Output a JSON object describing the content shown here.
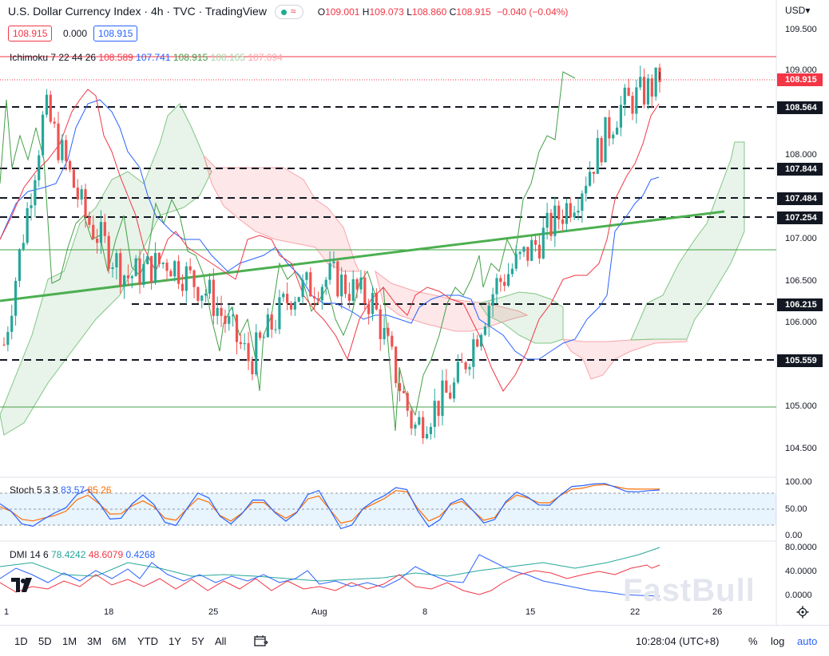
{
  "header": {
    "title": "U.S. Dollar Currency Index · 4h · TVC · TradingView",
    "ohlc": {
      "o": "109.001",
      "h": "109.073",
      "l": "108.860",
      "c": "108.915",
      "chg": "−0.040 (−0.04%)"
    },
    "labels": {
      "o": "O",
      "h": "H",
      "l": "L",
      "c": "C"
    },
    "badge_symbol": "≈",
    "bid": "108.915",
    "spread": "0.000",
    "ask": "108.915",
    "currency": "USD▾"
  },
  "ichimoku": {
    "label": "Ichimoku 7 22 44 26",
    "v1": "108.589",
    "v2": "107.741",
    "v3": "108.915",
    "v4": "108.165",
    "v5": "107.094"
  },
  "stoch": {
    "label": "Stoch 5 3 3",
    "k": "83.57",
    "d": "85.26"
  },
  "dmi": {
    "label": "DMI 14 6",
    "plus": "78.4242",
    "minus": "48.6079",
    "adx": "0.4268"
  },
  "colors": {
    "up": "#26a69a",
    "down": "#ef5350",
    "tenkan": "#f23645",
    "kijun": "#2962ff",
    "chikou": "#43a047",
    "cloud_up": "#43a047",
    "cloud_down": "#f23645",
    "trendline": "#4caf50",
    "stoch_k": "#2962ff",
    "stoch_d": "#ff6d00",
    "accent": "#2962ff"
  },
  "price_axis": {
    "ticks": [
      "109.500",
      "109.000",
      "108.000",
      "107.000",
      "106.500",
      "106.000",
      "105.000",
      "104.500"
    ]
  },
  "stoch_axis": {
    "ticks": [
      "100.00",
      "50.00",
      "0.00"
    ]
  },
  "dmi_axis": {
    "ticks": [
      "80.0000",
      "40.0000",
      "0.0000"
    ]
  },
  "time_axis": {
    "ticks": [
      "1",
      "18",
      "25",
      "Aug",
      "8",
      "15",
      "22",
      "26"
    ]
  },
  "levels": [
    "108.564",
    "107.844",
    "107.484",
    "107.254",
    "106.215",
    "105.559"
  ],
  "current_price": "108.915",
  "bottom_bar": {
    "timeframes": [
      "1D",
      "5D",
      "1M",
      "3M",
      "6M",
      "YTD",
      "1Y",
      "5Y",
      "All"
    ],
    "clock": "10:28:04 (UTC+8)",
    "percent": "%",
    "log": "log",
    "auto": "auto"
  },
  "watermark": "FastBull",
  "chart_data": [
    {
      "type": "line",
      "title": "U.S. Dollar Currency Index · 4h · TVC",
      "x_range": [
        "Jul 11",
        "Aug 26"
      ],
      "ylim": [
        104.3,
        109.7
      ],
      "description_series": [
        {
          "name": "Close (approx.)",
          "x": [
            "Jul 11",
            "Jul 14",
            "Jul 18",
            "Jul 21",
            "Jul 25",
            "Jul 28",
            "Aug 1",
            "Aug 3",
            "Aug 5",
            "Aug 8",
            "Aug 10",
            "Aug 12",
            "Aug 15",
            "Aug 17",
            "Aug 19",
            "Aug 22",
            "Aug 23"
          ],
          "values": [
            105.8,
            108.6,
            107.3,
            106.6,
            106.8,
            106.4,
            105.6,
            106.4,
            106.6,
            106.3,
            104.8,
            105.3,
            106.5,
            107.0,
            107.6,
            108.6,
            108.915
          ]
        },
        {
          "name": "Tenkan",
          "x": [
            "Jul 11",
            "Jul 14",
            "Jul 18",
            "Jul 21",
            "Jul 25",
            "Jul 28",
            "Aug 1",
            "Aug 3",
            "Aug 5",
            "Aug 8",
            "Aug 10",
            "Aug 12",
            "Aug 15",
            "Aug 17",
            "Aug 19",
            "Aug 22",
            "Aug 23"
          ],
          "values": [
            106.0,
            108.7,
            107.4,
            106.5,
            106.6,
            106.5,
            105.8,
            106.0,
            106.4,
            106.3,
            105.2,
            105.3,
            106.4,
            106.7,
            107.4,
            108.4,
            108.589
          ]
        },
        {
          "name": "Kijun",
          "x": [
            "Jul 11",
            "Jul 14",
            "Jul 18",
            "Jul 21",
            "Jul 25",
            "Jul 28",
            "Aug 1",
            "Aug 3",
            "Aug 5",
            "Aug 8",
            "Aug 10",
            "Aug 12",
            "Aug 15",
            "Aug 17",
            "Aug 19",
            "Aug 22",
            "Aug 23"
          ],
          "values": [
            106.3,
            108.3,
            107.9,
            106.8,
            106.7,
            106.9,
            106.3,
            106.1,
            106.0,
            106.2,
            106.1,
            105.8,
            105.7,
            106.0,
            106.8,
            107.3,
            107.741
          ]
        }
      ],
      "horizontal_levels": [
        108.564,
        107.844,
        107.484,
        107.254,
        106.215,
        105.559
      ],
      "trendline": {
        "from": {
          "x": "Jul 11",
          "y": 106.3
        },
        "to": {
          "x": "Aug 26",
          "y": 107.35
        }
      },
      "last_price": 108.915
    },
    {
      "type": "line",
      "title": "Stoch 5 3 3",
      "ylim": [
        0,
        100
      ],
      "bands": [
        20,
        50,
        80
      ],
      "series": [
        {
          "name": "%K",
          "last": 83.57,
          "values": [
            60,
            20,
            45,
            85,
            30,
            75,
            20,
            80,
            25,
            70,
            30,
            85,
            15,
            65,
            90,
            20,
            70,
            25,
            80,
            55,
            90,
            95,
            80,
            83.57
          ]
        },
        {
          "name": "%D",
          "last": 85.26,
          "values": [
            55,
            30,
            40,
            75,
            40,
            65,
            30,
            70,
            30,
            65,
            35,
            75,
            25,
            60,
            85,
            30,
            65,
            30,
            75,
            60,
            85,
            93,
            85,
            85.26
          ]
        }
      ]
    },
    {
      "type": "line",
      "title": "DMI 14 6",
      "ylim": [
        0,
        90
      ],
      "series": [
        {
          "name": "+DI",
          "last": 78.4242
        },
        {
          "name": "-DI",
          "last": 48.6079
        },
        {
          "name": "ADX",
          "last": 0.4268
        }
      ]
    }
  ]
}
